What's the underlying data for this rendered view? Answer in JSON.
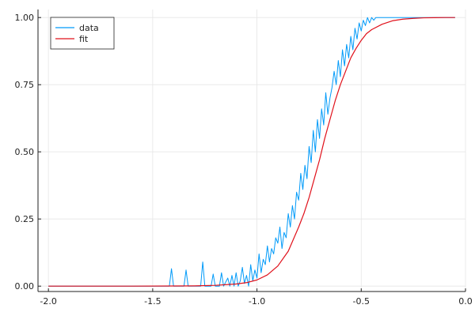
{
  "chart_data": {
    "type": "line",
    "title": "",
    "xlabel": "",
    "ylabel": "",
    "xlim": [
      -2.05,
      0.0
    ],
    "ylim": [
      -0.02,
      1.03
    ],
    "xticks": [
      -2.0,
      -1.5,
      -1.0,
      -0.5,
      0.0
    ],
    "xtick_labels": [
      "-2.0",
      "-1.5",
      "-1.0",
      "-0.5",
      "0.0"
    ],
    "yticks": [
      0.0,
      0.25,
      0.5,
      0.75,
      1.0
    ],
    "ytick_labels": [
      "0.00",
      "0.25",
      "0.50",
      "0.75",
      "1.00"
    ],
    "grid": true,
    "legend": "top-left",
    "series": [
      {
        "name": "data",
        "color": "#009af9",
        "x": [
          -2.0,
          -1.9,
          -1.8,
          -1.7,
          -1.6,
          -1.5,
          -1.45,
          -1.42,
          -1.41,
          -1.4,
          -1.35,
          -1.34,
          -1.33,
          -1.3,
          -1.27,
          -1.26,
          -1.25,
          -1.22,
          -1.21,
          -1.2,
          -1.18,
          -1.17,
          -1.16,
          -1.14,
          -1.13,
          -1.12,
          -1.11,
          -1.1,
          -1.09,
          -1.08,
          -1.07,
          -1.06,
          -1.05,
          -1.04,
          -1.03,
          -1.02,
          -1.01,
          -1.0,
          -0.99,
          -0.98,
          -0.97,
          -0.96,
          -0.95,
          -0.94,
          -0.93,
          -0.92,
          -0.91,
          -0.9,
          -0.89,
          -0.88,
          -0.87,
          -0.86,
          -0.85,
          -0.84,
          -0.83,
          -0.82,
          -0.81,
          -0.8,
          -0.79,
          -0.78,
          -0.77,
          -0.76,
          -0.75,
          -0.74,
          -0.73,
          -0.72,
          -0.71,
          -0.7,
          -0.69,
          -0.68,
          -0.67,
          -0.66,
          -0.65,
          -0.64,
          -0.63,
          -0.62,
          -0.61,
          -0.6,
          -0.59,
          -0.58,
          -0.57,
          -0.56,
          -0.55,
          -0.54,
          -0.53,
          -0.52,
          -0.51,
          -0.5,
          -0.49,
          -0.48,
          -0.47,
          -0.46,
          -0.45,
          -0.44,
          -0.43,
          -0.42,
          -0.41,
          -0.4,
          -0.38,
          -0.35,
          -0.3,
          -0.25,
          -0.2,
          -0.15,
          -0.1,
          -0.05
        ],
        "y": [
          0,
          0,
          0,
          0,
          0,
          0,
          0,
          0,
          0.065,
          0,
          0,
          0.06,
          0,
          0,
          0,
          0.09,
          0,
          0,
          0.045,
          0,
          0,
          0.05,
          0,
          0.03,
          0,
          0.04,
          0,
          0.05,
          0,
          0.02,
          0.07,
          0.01,
          0.04,
          0.0,
          0.08,
          0.02,
          0.06,
          0.03,
          0.12,
          0.05,
          0.1,
          0.08,
          0.15,
          0.09,
          0.14,
          0.12,
          0.18,
          0.16,
          0.22,
          0.14,
          0.2,
          0.18,
          0.27,
          0.22,
          0.3,
          0.25,
          0.35,
          0.32,
          0.42,
          0.36,
          0.45,
          0.4,
          0.52,
          0.46,
          0.58,
          0.5,
          0.62,
          0.55,
          0.66,
          0.6,
          0.72,
          0.64,
          0.7,
          0.74,
          0.8,
          0.75,
          0.84,
          0.78,
          0.88,
          0.82,
          0.9,
          0.85,
          0.93,
          0.88,
          0.96,
          0.92,
          0.98,
          0.95,
          0.99,
          0.97,
          1.0,
          0.98,
          1.0,
          0.99,
          1.0,
          1.0,
          1.0,
          1.0,
          1.0,
          1.0,
          1.0,
          1.0,
          1.0,
          1.0,
          1.0,
          1.0
        ]
      },
      {
        "name": "fit",
        "color": "#e26f46",
        "line_color": "#e0101a",
        "x": [
          -2.0,
          -1.8,
          -1.6,
          -1.4,
          -1.3,
          -1.2,
          -1.1,
          -1.05,
          -1.0,
          -0.95,
          -0.9,
          -0.85,
          -0.8,
          -0.775,
          -0.75,
          -0.725,
          -0.7,
          -0.675,
          -0.65,
          -0.625,
          -0.6,
          -0.575,
          -0.55,
          -0.525,
          -0.5,
          -0.475,
          -0.45,
          -0.4,
          -0.35,
          -0.3,
          -0.25,
          -0.2,
          -0.15,
          -0.1,
          -0.05
        ],
        "y": [
          0,
          0,
          0,
          0.0005,
          0.001,
          0.003,
          0.008,
          0.013,
          0.023,
          0.042,
          0.075,
          0.13,
          0.22,
          0.27,
          0.33,
          0.4,
          0.47,
          0.55,
          0.62,
          0.69,
          0.75,
          0.8,
          0.85,
          0.885,
          0.915,
          0.94,
          0.955,
          0.975,
          0.988,
          0.994,
          0.997,
          0.999,
          0.9995,
          1.0,
          1.0
        ]
      }
    ]
  }
}
